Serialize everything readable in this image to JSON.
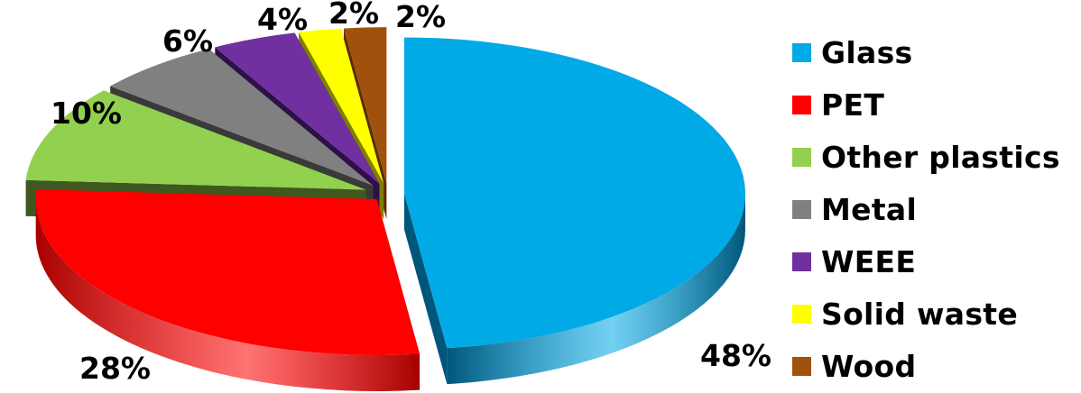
{
  "chart_data": {
    "type": "pie",
    "style": "3d-exploded",
    "categories": [
      "Glass",
      "PET",
      "Other plastics",
      "Metal",
      "WEEE",
      "Solid waste",
      "Wood"
    ],
    "values": [
      48,
      28,
      10,
      6,
      4,
      2,
      2
    ],
    "labels": [
      "48%",
      "28%",
      "10%",
      "6%",
      "4%",
      "2%",
      "2%"
    ],
    "colors": [
      "#00AAE6",
      "#FF0000",
      "#92D050",
      "#808080",
      "#7030A0",
      "#FFFF00",
      "#A0520D"
    ],
    "side_colors": [
      "#00567A",
      "#A80000",
      "#3E5820",
      "#3A3A3A",
      "#2E1048",
      "#808000",
      "#5A2C06"
    ],
    "legend_placement": "right",
    "title": "",
    "xlabel": "",
    "ylabel": ""
  }
}
